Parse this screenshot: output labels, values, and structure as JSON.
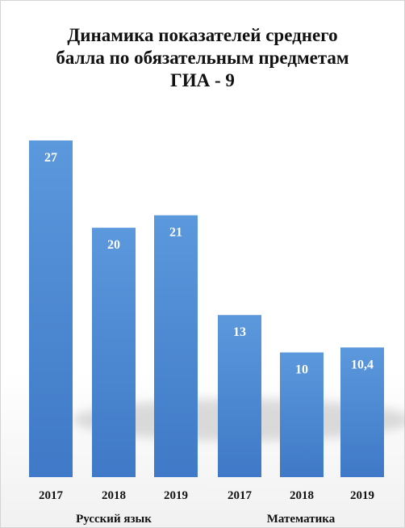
{
  "chart_data": {
    "type": "bar",
    "title_lines": [
      "Динамика показателей среднего",
      "балла по обязательным предметам",
      "ГИА - 9"
    ],
    "categories": [
      "2017",
      "2018",
      "2019",
      "2017",
      "2018",
      "2019"
    ],
    "groups": [
      {
        "label": "Русский язык",
        "categories": [
          "2017",
          "2018",
          "2019"
        ],
        "values": [
          27,
          20,
          21
        ]
      },
      {
        "label": "Математика",
        "categories": [
          "2017",
          "2018",
          "2019"
        ],
        "values": [
          13,
          10,
          10.4
        ]
      }
    ],
    "values": [
      27,
      20,
      21,
      13,
      10,
      10.4
    ],
    "data_labels": [
      "27",
      "20",
      "21",
      "13",
      "10",
      "10,4"
    ],
    "ylim": [
      0,
      27
    ],
    "grid": false,
    "legend": "none",
    "bar_color": "#4a86d0",
    "label_color": "#ffffff"
  }
}
